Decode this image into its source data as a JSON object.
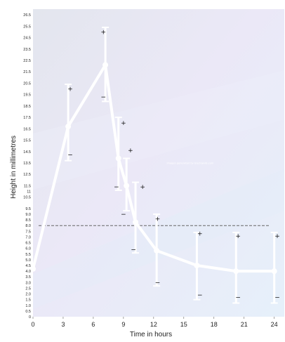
{
  "chart_data": {
    "type": "line",
    "title": "",
    "xlabel": "Time in hours",
    "ylabel": "Height in millimetres",
    "xlim": [
      0,
      25
    ],
    "ylim": [
      0,
      27
    ],
    "x_ticks": [
      "0",
      "3",
      "6",
      "9",
      "12",
      "15",
      "18",
      "21",
      "24"
    ],
    "y_ticks": [
      "0",
      "0.5",
      "1.0",
      "1.5",
      "2.0",
      "2.5",
      "3.0",
      "3.5",
      "4.0",
      "4.5",
      "5.0",
      "5.5",
      "6.0",
      "6.5",
      "7.0",
      "7.5",
      "8.0",
      "8.5",
      "9.0",
      "9.5",
      "10.5",
      "11",
      "11.5",
      "12.5",
      "13.5",
      "14.5",
      "15.5",
      "16.5",
      "17.5",
      "18.5",
      "19.5",
      "20.5",
      "21.5",
      "22.5",
      "23.5",
      "24.5",
      "25.5",
      "26.5"
    ],
    "series": [
      {
        "x": [
          0,
          3.5,
          7.2,
          8.5,
          9.3,
          10.2,
          12.3,
          16.3,
          20.2,
          24
        ],
        "y": [
          4.2,
          16.7,
          22.1,
          13.9,
          11.5,
          8.3,
          5.8,
          4.5,
          4.0,
          4.0
        ],
        "error_low": [
          4.2,
          13.7,
          18.9,
          11.1,
          9.3,
          5.6,
          2.7,
          1.5,
          1.2,
          1.2
        ],
        "error_high": [
          4.2,
          20.4,
          25.4,
          17.5,
          13.9,
          11.8,
          9.0,
          7.4,
          7.4,
          7.4
        ],
        "color": "#ffffff"
      }
    ],
    "reference_line": {
      "y": 8.0,
      "style": "dashed",
      "color": "#666666"
    },
    "annotations": [
      {
        "text": "+",
        "x": 3.7,
        "y": 20.0
      },
      {
        "text": "−",
        "x": 3.7,
        "y": 14.2
      },
      {
        "text": "+",
        "x": 7.0,
        "y": 25.0
      },
      {
        "text": "−",
        "x": 7.0,
        "y": 19.3
      },
      {
        "text": "+",
        "x": 9.0,
        "y": 17.0
      },
      {
        "text": "−",
        "x": 8.3,
        "y": 11.4
      },
      {
        "text": "+",
        "x": 9.7,
        "y": 14.6
      },
      {
        "text": "−",
        "x": 9.0,
        "y": 9.0
      },
      {
        "text": "+",
        "x": 10.9,
        "y": 11.4
      },
      {
        "text": "−",
        "x": 10.0,
        "y": 5.9
      },
      {
        "text": "+",
        "x": 12.4,
        "y": 8.6
      },
      {
        "text": "−",
        "x": 12.4,
        "y": 3.0
      },
      {
        "text": "+",
        "x": 16.6,
        "y": 7.3
      },
      {
        "text": "−",
        "x": 16.6,
        "y": 1.9
      },
      {
        "text": "+",
        "x": 20.4,
        "y": 7.1
      },
      {
        "text": "−",
        "x": 20.4,
        "y": 1.7
      },
      {
        "text": "+",
        "x": 24.3,
        "y": 7.1
      },
      {
        "text": "−",
        "x": 24.3,
        "y": 1.7
      }
    ],
    "note": {
      "text": "images generated by blackwalls.com",
      "x": 13.3,
      "y": 13.4
    },
    "grid": false,
    "background_colors": [
      "#e2e7ee",
      "#e9e7f7",
      "#e8f0f9"
    ]
  }
}
